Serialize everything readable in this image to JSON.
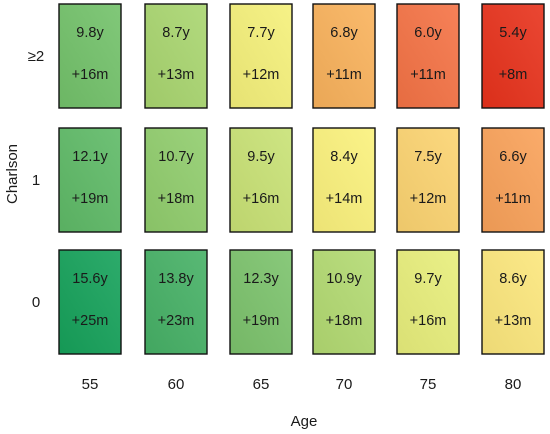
{
  "chart_data": {
    "type": "heatmap",
    "xlabel": "Age",
    "ylabel": "Charlson",
    "x_categories": [
      "55",
      "60",
      "65",
      "70",
      "75",
      "80"
    ],
    "y_categories": [
      "≥2",
      "1",
      "0"
    ],
    "cells": [
      [
        {
          "primary": "9.8y",
          "secondary": "+16m",
          "color": "#73c26a"
        },
        {
          "primary": "8.7y",
          "secondary": "+13m",
          "color": "#a9d670"
        },
        {
          "primary": "7.7y",
          "secondary": "+12m",
          "color": "#f5f07a"
        },
        {
          "primary": "6.8y",
          "secondary": "+11m",
          "color": "#f9b25c"
        },
        {
          "primary": "6.0y",
          "secondary": "+11m",
          "color": "#f57345"
        },
        {
          "primary": "5.4y",
          "secondary": "+8m",
          "color": "#e8321c"
        }
      ],
      [
        {
          "primary": "12.1y",
          "secondary": "+19m",
          "color": "#5fba67"
        },
        {
          "primary": "10.7y",
          "secondary": "+18m",
          "color": "#91cd6d"
        },
        {
          "primary": "9.5y",
          "secondary": "+16m",
          "color": "#c9e275"
        },
        {
          "primary": "8.4y",
          "secondary": "+14m",
          "color": "#fbf27c"
        },
        {
          "primary": "7.5y",
          "secondary": "+12m",
          "color": "#fcd471"
        },
        {
          "primary": "6.6y",
          "secondary": "+11m",
          "color": "#f9a259"
        }
      ],
      [
        {
          "primary": "15.6y",
          "secondary": "+25m",
          "color": "#16a25a"
        },
        {
          "primary": "13.8y",
          "secondary": "+23m",
          "color": "#46b166"
        },
        {
          "primary": "12.3y",
          "secondary": "+19m",
          "color": "#7cc36c"
        },
        {
          "primary": "10.9y",
          "secondary": "+18m",
          "color": "#b3da72"
        },
        {
          "primary": "9.7y",
          "secondary": "+16m",
          "color": "#e8ee7b"
        },
        {
          "primary": "8.6y",
          "secondary": "+13m",
          "color": "#fce77c"
        }
      ]
    ]
  }
}
